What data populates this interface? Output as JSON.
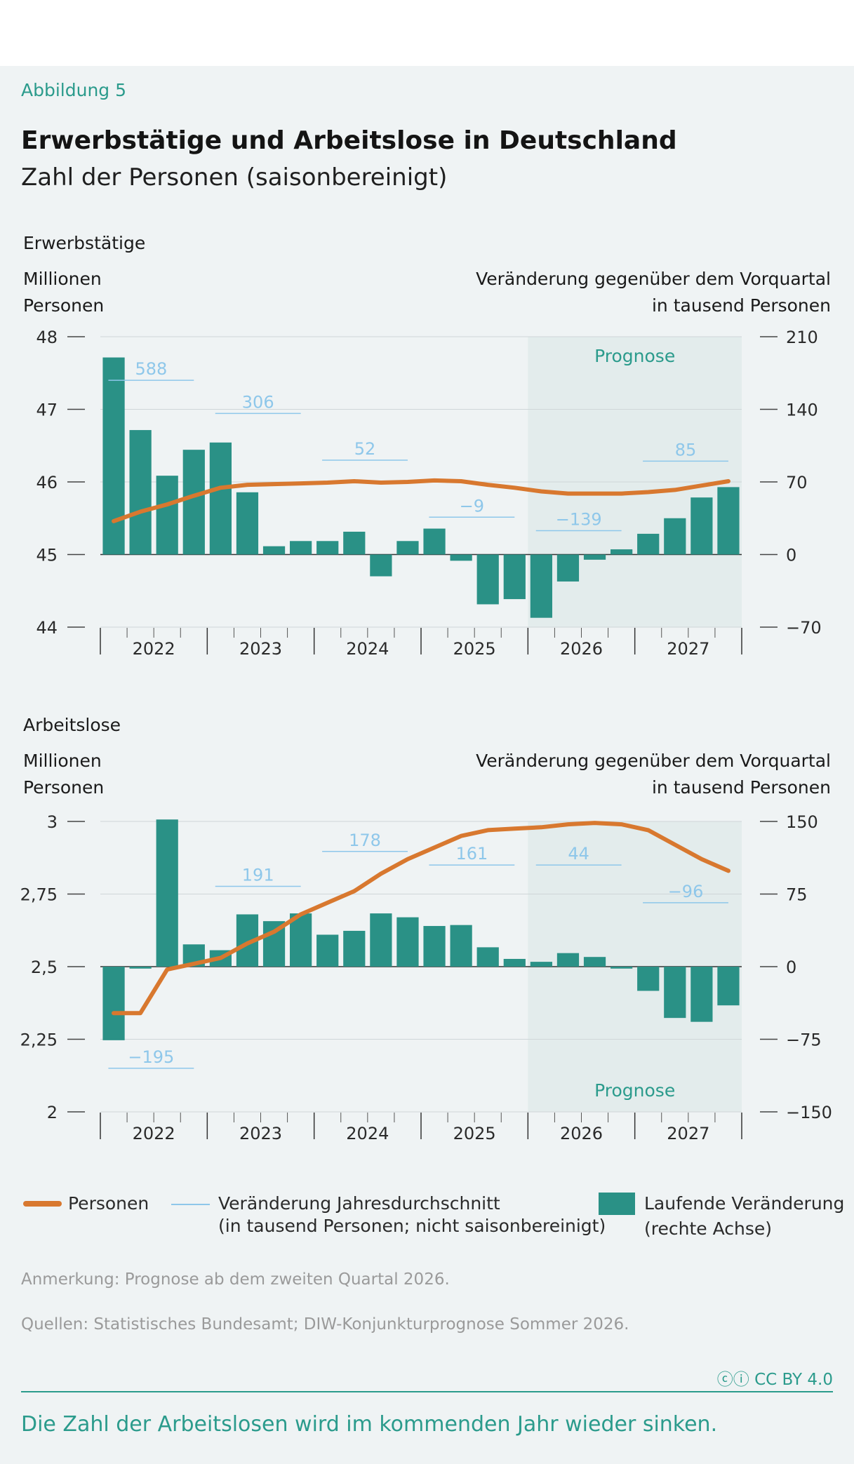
{
  "figure_label": "Abbildung 5",
  "title": "Erwerbstätige und Arbeitslose in Deutschland",
  "subtitle": "Zahl der Personen (saisonbereinigt)",
  "chart_data": [
    {
      "type": "bar",
      "name": "Erwerbstätige",
      "left_axis_label": [
        "Millionen",
        "Personen"
      ],
      "right_axis_label": [
        "Veränderung gegenüber dem Vorquartal",
        "in tausend Personen"
      ],
      "ylim_left": [
        44,
        48
      ],
      "left_ticks": [
        "44",
        "45",
        "46",
        "47",
        "48"
      ],
      "ylim_right": [
        -70,
        210
      ],
      "right_ticks": [
        "−70",
        "0",
        "70",
        "140",
        "210"
      ],
      "year_labels": [
        "2022",
        "2023",
        "2024",
        "2025",
        "2026",
        "2027"
      ],
      "forecast_label": "Prognose",
      "forecast_start_quarter": 17,
      "bars": [
        190,
        120,
        76,
        101,
        108,
        60,
        8,
        13,
        13,
        22,
        -21,
        13,
        25,
        -6,
        -48,
        -43,
        -61,
        -26,
        -5,
        5,
        20,
        35,
        55,
        65
      ],
      "line": [
        45.46,
        45.59,
        45.69,
        45.81,
        45.92,
        45.96,
        45.97,
        45.98,
        45.99,
        46.01,
        45.99,
        46.0,
        46.02,
        46.01,
        45.96,
        45.92,
        45.87,
        45.84,
        45.84,
        45.84,
        45.86,
        45.89,
        45.95,
        46.01
      ],
      "annual_change": [
        {
          "year": "2022",
          "value": "588",
          "level": 168
        },
        {
          "year": "2023",
          "value": "306",
          "level": 136
        },
        {
          "year": "2024",
          "value": "52",
          "level": 91
        },
        {
          "year": "2025",
          "value": "−9",
          "level": 36
        },
        {
          "year": "2026",
          "value": "−139",
          "level": 23
        },
        {
          "year": "2027",
          "value": "85",
          "level": 90
        }
      ]
    },
    {
      "type": "bar",
      "name": "Arbeitslose",
      "left_axis_label": [
        "Millionen",
        "Personen"
      ],
      "right_axis_label": [
        "Veränderung gegenüber dem Vorquartal",
        "in tausend Personen"
      ],
      "ylim_left": [
        2,
        3
      ],
      "left_ticks": [
        "2",
        "2,25",
        "2,5",
        "2,75",
        "3"
      ],
      "ylim_right": [
        -150,
        150
      ],
      "right_ticks": [
        "−150",
        "−75",
        "0",
        "75",
        "150"
      ],
      "year_labels": [
        "2022",
        "2023",
        "2024",
        "2025",
        "2026",
        "2027"
      ],
      "forecast_label": "Prognose",
      "forecast_start_quarter": 17,
      "bars": [
        -76,
        -2,
        152,
        23,
        17,
        54,
        47,
        55,
        33,
        37,
        55,
        51,
        42,
        43,
        20,
        8,
        5,
        14,
        10,
        -2,
        -25,
        -53,
        -57,
        -40
      ],
      "line": [
        2.34,
        2.34,
        2.49,
        2.51,
        2.53,
        2.58,
        2.62,
        2.68,
        2.72,
        2.76,
        2.82,
        2.87,
        2.91,
        2.95,
        2.97,
        2.975,
        2.98,
        2.99,
        2.995,
        2.99,
        2.97,
        2.92,
        2.87,
        2.83
      ],
      "annual_change": [
        {
          "year": "2022",
          "value": "−195",
          "level": -105
        },
        {
          "year": "2023",
          "value": "191",
          "level": 83
        },
        {
          "year": "2024",
          "value": "178",
          "level": 119
        },
        {
          "year": "2025",
          "value": "161",
          "level": 105
        },
        {
          "year": "2026",
          "value": "44",
          "level": 105
        },
        {
          "year": "2027",
          "value": "−96",
          "level": 66
        }
      ]
    }
  ],
  "legend": {
    "personen": "Personen",
    "veraenderung_1": "Veränderung Jahresdurchschnitt",
    "veraenderung_2": "(in tausend Personen; nicht saisonbereinigt)",
    "laufende_1": "Laufende Veränderung",
    "laufende_2": "(rechte Achse)"
  },
  "note": "Anmerkung: Prognose ab dem zweiten Quartal 2026.",
  "source": "Quellen: Statistisches Bundesamt; DIW-Konjunkturprognose Sommer 2026.",
  "license": "CC BY 4.0",
  "caption": "Die Zahl der Arbeitslosen wird im kommenden Jahr wieder sinken.",
  "colors": {
    "bar": "#2a9186",
    "line": "#d8782f",
    "annual": "#8ec7ea",
    "accent": "#2b9b8c",
    "forecast_bg": "#e3ecec"
  }
}
